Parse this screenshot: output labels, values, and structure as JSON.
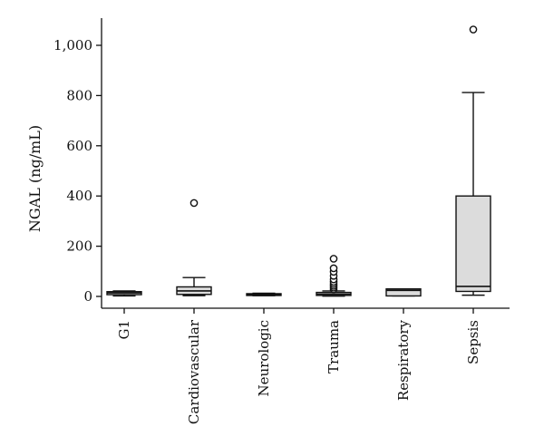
{
  "chart_data": {
    "type": "box",
    "title": "",
    "xlabel": "",
    "ylabel": "NGAL (ng/mL)",
    "ylim": [
      -45,
      1110
    ],
    "yticks": [
      0,
      200,
      400,
      600,
      800,
      1000
    ],
    "ytick_labels": [
      "0",
      "200",
      "400",
      "600",
      "800",
      "1,000"
    ],
    "grid": false,
    "categories": [
      "G1",
      "Cardiovascular",
      "Neurologic",
      "Trauma",
      "Respiratory",
      "Sepsis"
    ],
    "boxes": [
      {
        "category": "G1",
        "min": 2,
        "q1": 7,
        "median": 14,
        "q3": 19,
        "max": 22,
        "outliers": []
      },
      {
        "category": "Cardiovascular",
        "min": 3,
        "q1": 8,
        "median": 22,
        "q3": 38,
        "max": 75,
        "outliers": [
          372
        ]
      },
      {
        "category": "Neurologic",
        "min": 3,
        "q1": 5,
        "median": 8,
        "q3": 11,
        "max": 13,
        "outliers": []
      },
      {
        "category": "Trauma",
        "min": 1,
        "q1": 4,
        "median": 9,
        "q3": 16,
        "max": 22,
        "outliers": [
          28,
          35,
          42,
          50,
          58,
          68,
          82,
          98,
          112,
          150
        ]
      },
      {
        "category": "Respiratory",
        "min": 2,
        "q1": 2,
        "median": 24,
        "q3": 30,
        "max": 30,
        "outliers": []
      },
      {
        "category": "Sepsis",
        "min": 5,
        "q1": 20,
        "median": 40,
        "q3": 400,
        "max": 812,
        "outliers": [
          1063
        ]
      }
    ]
  }
}
